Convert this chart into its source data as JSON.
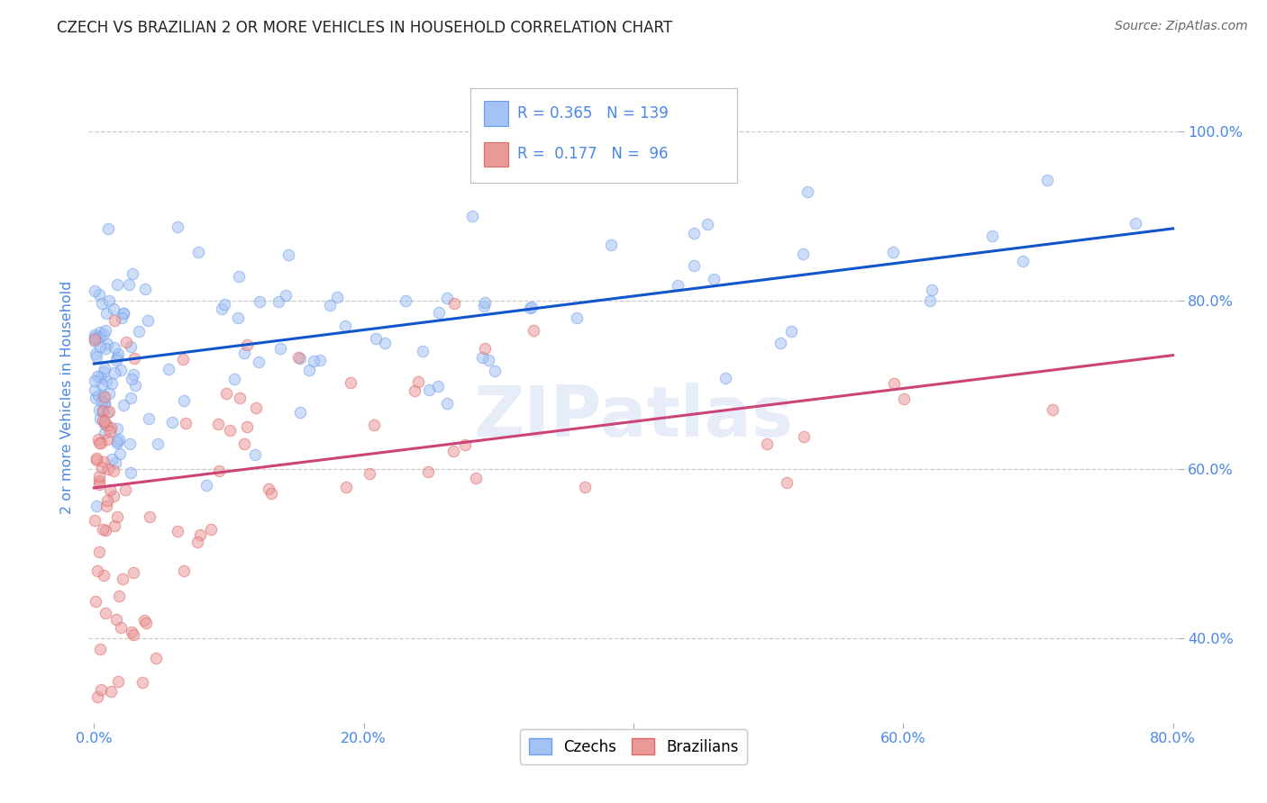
{
  "title": "CZECH VS BRAZILIAN 2 OR MORE VEHICLES IN HOUSEHOLD CORRELATION CHART",
  "source": "Source: ZipAtlas.com",
  "ylabel": "2 or more Vehicles in Household",
  "xlabel_ticks": [
    "0.0%",
    "20.0%",
    "40.0%",
    "60.0%",
    "80.0%"
  ],
  "ylabel_ticks": [
    "40.0%",
    "60.0%",
    "80.0%",
    "100.0%"
  ],
  "xlim": [
    -0.004,
    0.804
  ],
  "ylim": [
    0.3,
    1.07
  ],
  "czech_color": "#a4c2f4",
  "czech_edge": "#6d9eeb",
  "brazilian_color": "#ea9999",
  "brazilian_edge": "#e06666",
  "line_czech": "#1155cc",
  "line_brazilian": "#cc4477",
  "R_czech": 0.365,
  "N_czech": 139,
  "R_brazilian": 0.177,
  "N_brazilian": 96,
  "watermark": "ZIPatlas",
  "legend_czechs": "Czechs",
  "legend_brazilians": "Brazilians",
  "background_color": "#ffffff",
  "grid_color": "#cccccc",
  "title_color": "#222222",
  "axis_label_color": "#4a86e8",
  "tick_color": "#4a86e8",
  "marker_size": 80,
  "alpha": 0.55,
  "czech_line_y0": 0.725,
  "czech_line_y1": 0.885,
  "braz_line_y0": 0.578,
  "braz_line_y1": 0.735
}
